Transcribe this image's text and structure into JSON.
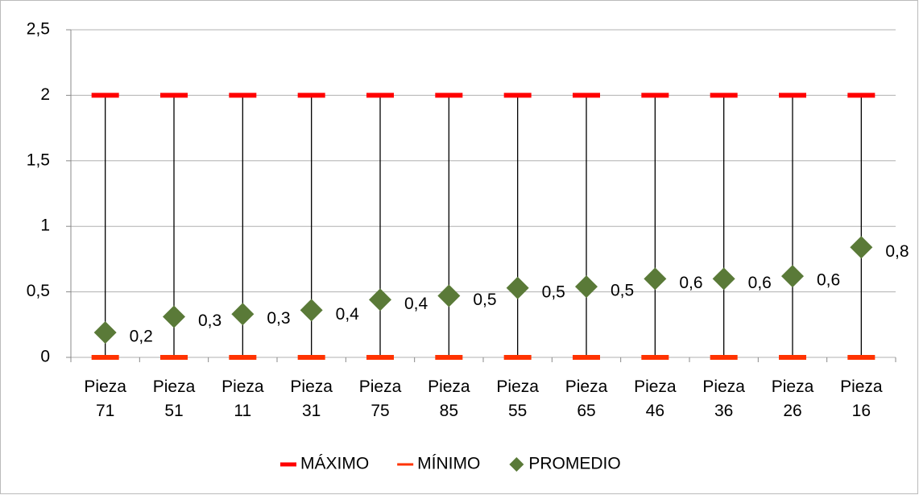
{
  "chart_data": {
    "type": "highlow",
    "categories": [
      "Pieza 71",
      "Pieza 51",
      "Pieza 11",
      "Pieza 31",
      "Pieza 75",
      "Pieza 85",
      "Pieza 55",
      "Pieza 65",
      "Pieza 46",
      "Pieza 36",
      "Pieza 26",
      "Pieza 16"
    ],
    "series": [
      {
        "name": "MÁXIMO",
        "color": "#ff0000",
        "values": [
          2,
          2,
          2,
          2,
          2,
          2,
          2,
          2,
          2,
          2,
          2,
          2
        ]
      },
      {
        "name": "MÍNIMO",
        "color": "#ff3300",
        "values": [
          0,
          0,
          0,
          0,
          0,
          0,
          0,
          0,
          0,
          0,
          0,
          0
        ]
      },
      {
        "name": "PROMEDIO",
        "color": "#5a7a38",
        "values": [
          0.19,
          0.31,
          0.33,
          0.36,
          0.44,
          0.47,
          0.53,
          0.54,
          0.6,
          0.6,
          0.62,
          0.84
        ],
        "value_labels": [
          "0,2",
          "0,3",
          "0,3",
          "0,4",
          "0,4",
          "0,5",
          "0,5",
          "0,5",
          "0,6",
          "0,6",
          "0,6",
          "0,8"
        ]
      }
    ],
    "ylim": [
      0,
      2.5
    ],
    "yticks": [
      0,
      {
        "value": 0.5,
        "label": "0,5"
      },
      1,
      {
        "value": 1.5,
        "label": "1,5"
      },
      2,
      {
        "value": 2.5,
        "label": "2,5"
      }
    ],
    "grid": true,
    "legend": "bottom"
  }
}
